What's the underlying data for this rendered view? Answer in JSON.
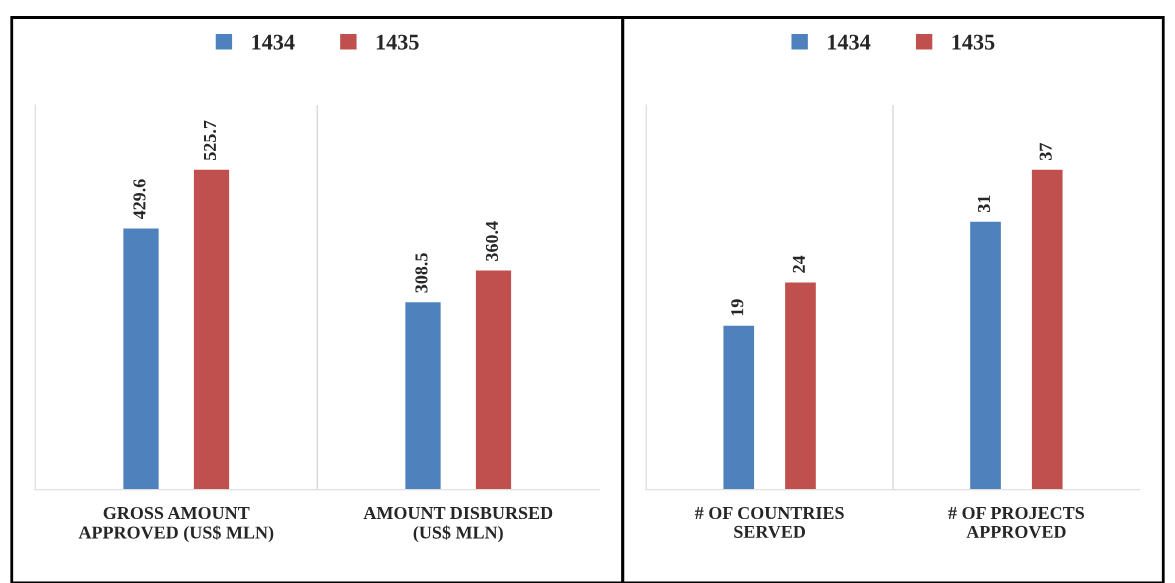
{
  "chart_data": [
    {
      "type": "bar",
      "categories": [
        "GROSS AMOUNT APPROVED (US$ MLN)",
        "AMOUNT DISBURSED (US$ MLN)"
      ],
      "series": [
        {
          "name": "1434",
          "color": "#4f81bd",
          "values": [
            429.6,
            308.5
          ]
        },
        {
          "name": "1435",
          "color": "#c0504d",
          "values": [
            525.7,
            360.4
          ]
        }
      ],
      "data_labels": true,
      "legend": "top",
      "grid": "x"
    },
    {
      "type": "bar",
      "categories": [
        "# OF COUNTRIES SERVED",
        "# OF PROJECTS APPROVED"
      ],
      "series": [
        {
          "name": "1434",
          "color": "#4f81bd",
          "values": [
            19,
            31
          ]
        },
        {
          "name": "1435",
          "color": "#c0504d",
          "values": [
            24,
            37
          ]
        }
      ],
      "data_labels": true,
      "legend": "top",
      "grid": "x"
    }
  ]
}
